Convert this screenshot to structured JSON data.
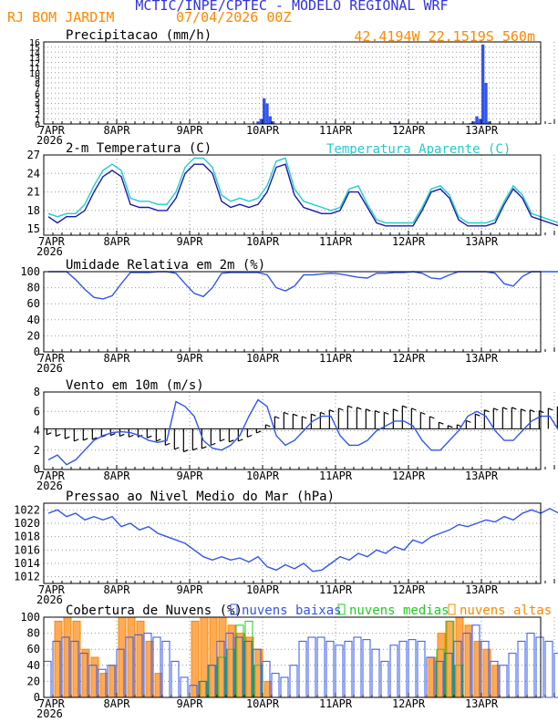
{
  "header": {
    "title": "MCTIC/INPE/CPTEC - MODELO REGIONAL WRF",
    "location": "RJ BOM JARDIM",
    "date": "07/04/2026 00Z",
    "coords": "42.4194W  22.1519S  560m"
  },
  "colors": {
    "title": "#3333dd",
    "orange": "#ff8800",
    "blue": "#3355ee",
    "cyan": "#22cccc",
    "green": "#22cc22",
    "grid": "#999999"
  },
  "x_ticks": [
    "7APR",
    "8APR",
    "9APR",
    "10APR",
    "11APR",
    "12APR",
    "13APR"
  ],
  "x_year": "2026",
  "chart_data": [
    {
      "type": "bar",
      "title": "Precipitacao (mm/h)",
      "ylim": [
        0,
        16
      ],
      "ticks": [
        0,
        1,
        2,
        3,
        4,
        5,
        6,
        7,
        8,
        9,
        10,
        11,
        12,
        13,
        14,
        15,
        16
      ],
      "hour_step": 1,
      "values": [
        0,
        0,
        0,
        0,
        0,
        0,
        0,
        0,
        0,
        0,
        0,
        0,
        0,
        0,
        0,
        0,
        0,
        0,
        0,
        0,
        0,
        0,
        0,
        0,
        0,
        0,
        0,
        0,
        0,
        0,
        0,
        0,
        0,
        0,
        0,
        0,
        0,
        0,
        0,
        0,
        0,
        0,
        0,
        0,
        0,
        0,
        0,
        0,
        0,
        0,
        0,
        0,
        0,
        0,
        0,
        0,
        0,
        0,
        0,
        0,
        0,
        0,
        0,
        0,
        0,
        0,
        0,
        0,
        0,
        0,
        0.5,
        1,
        5,
        4,
        1.5,
        0.5,
        0,
        0,
        0,
        0,
        0,
        0,
        0,
        0,
        0,
        0,
        0,
        0,
        0,
        0,
        0,
        0,
        0,
        0,
        0,
        0,
        0,
        0,
        0,
        0,
        0,
        0,
        0,
        0,
        0,
        0,
        0,
        0,
        0,
        0,
        0,
        0,
        0,
        0,
        0.2,
        0.2,
        0.2,
        0,
        0,
        0,
        0,
        0,
        0,
        0,
        0,
        0,
        0,
        0,
        0,
        0,
        0,
        0,
        0,
        0,
        0,
        0,
        0,
        0,
        0,
        0,
        0.2,
        0.5,
        1.5,
        1,
        15.5,
        8,
        0.5,
        0,
        0,
        0,
        0,
        0,
        0,
        0,
        0,
        0,
        0,
        0,
        0,
        0,
        0,
        0,
        0,
        0,
        0,
        0,
        0.2,
        0,
        0,
        0,
        0,
        0,
        0,
        0,
        0,
        0,
        0,
        0,
        0,
        0,
        0,
        0,
        0,
        0,
        0.3,
        0.5,
        0.3,
        0,
        0,
        0,
        0,
        0,
        0,
        0,
        0,
        0,
        0
      ]
    },
    {
      "type": "line",
      "title": "2-m Temperatura (C)",
      "ylim": [
        14,
        27
      ],
      "ticks": [
        15,
        18,
        21,
        24,
        27
      ],
      "hour_step": 3,
      "series": [
        {
          "name": "",
          "color": "#1a1aaa",
          "values": [
            17,
            16,
            17,
            17,
            18,
            21,
            23.5,
            24.5,
            23.5,
            19,
            18.5,
            18.5,
            18,
            18,
            20,
            24,
            25.5,
            25.5,
            24,
            19.5,
            18.5,
            19,
            18.5,
            19,
            21,
            25,
            25.5,
            20.5,
            18.5,
            18,
            17.5,
            17.5,
            18,
            21,
            21,
            18.5,
            16,
            15.5,
            15.5,
            15.5,
            15.5,
            18,
            21,
            21.5,
            20,
            16.5,
            15.5,
            15.5,
            15.5,
            16,
            19,
            21.5,
            20,
            17,
            16.5,
            16,
            15.5,
            16,
            16.5,
            19.5,
            20,
            17.5,
            16,
            15.5,
            15,
            16.5,
            20,
            19,
            18,
            16
          ]
        },
        {
          "name": "Temperatura Aparente (C)",
          "color": "#22cccc",
          "values": [
            17.5,
            17,
            17.5,
            17.5,
            19,
            22,
            24.5,
            25.5,
            24.5,
            20,
            19.5,
            19.5,
            19,
            19,
            21,
            25,
            26.5,
            26.5,
            25,
            20.5,
            19.5,
            20,
            19.5,
            20,
            22,
            26,
            26.5,
            21.5,
            19.5,
            19,
            18.5,
            18,
            18.5,
            21.5,
            22,
            19,
            16.5,
            16,
            16,
            16,
            16,
            18.5,
            21.5,
            22,
            20.5,
            17,
            16,
            16,
            16,
            16.5,
            19.5,
            22,
            20.5,
            17.5,
            17,
            16.5,
            16,
            16.5,
            17,
            20,
            20.5,
            18,
            16.5,
            16,
            15.5,
            17,
            20.5,
            19.5,
            18.5,
            16.5
          ]
        }
      ]
    },
    {
      "type": "line",
      "title": "Umidade Relativa em 2m (%)",
      "ylim": [
        0,
        100
      ],
      "ticks": [
        0,
        20,
        40,
        60,
        80,
        100
      ],
      "hour_step": 3,
      "series": [
        {
          "name": "",
          "color": "#3355ee",
          "values": [
            100,
            100,
            100,
            90,
            78,
            68,
            66,
            70,
            85,
            99,
            99,
            99,
            100,
            100,
            98,
            85,
            73,
            69,
            80,
            98,
            99,
            99,
            99,
            99,
            96,
            80,
            76,
            82,
            96,
            96,
            97,
            98,
            97,
            95,
            93,
            92,
            98,
            98,
            99,
            99,
            100,
            98,
            92,
            91,
            96,
            100,
            100,
            100,
            100,
            98,
            85,
            82,
            94,
            100,
            100,
            100,
            100,
            98,
            92,
            87,
            95,
            99,
            100,
            100,
            100,
            90,
            80,
            90,
            97,
            99
          ]
        }
      ]
    },
    {
      "type": "line",
      "title": "Vento em 10m (m/s)",
      "ylim": [
        0,
        8
      ],
      "ticks": [
        0,
        2,
        4,
        6,
        8
      ],
      "hour_step": 3,
      "series": [
        {
          "name": "",
          "color": "#3355ee",
          "values": [
            1,
            1.5,
            0.5,
            1,
            2,
            3,
            3.5,
            3.8,
            3.9,
            3.8,
            3.5,
            3,
            2.8,
            3,
            7,
            6.5,
            5.5,
            3,
            2.2,
            2,
            2.5,
            3.5,
            5.5,
            7.2,
            6.5,
            3.5,
            2.5,
            3,
            4,
            5,
            5.5,
            5.5,
            3.5,
            2.5,
            2.5,
            3,
            4,
            4.5,
            5,
            5,
            4.5,
            3,
            2,
            2,
            3,
            4,
            5.5,
            6,
            5.5,
            4,
            3,
            3,
            4,
            5,
            5.5,
            5.5,
            4,
            2.5,
            2,
            2.5,
            3.5,
            4.5,
            5,
            4.5,
            3.5,
            2.5,
            2.5,
            3.5,
            4.5,
            5
          ]
        }
      ],
      "wind_arrows": [
        -0.7,
        -0.9,
        -1.2,
        -1.5,
        -1.4,
        -1.3,
        -1,
        -0.8,
        -0.9,
        -1,
        -1,
        -1.1,
        -1.5,
        -2,
        -2.5,
        -2.8,
        -2.6,
        -2.4,
        -2,
        -1.5,
        -1.6,
        -1.5,
        -1,
        -0.5,
        0.5,
        1.5,
        2,
        1.8,
        1.5,
        1.8,
        2,
        2.3,
        2.5,
        2.8,
        2.6,
        2.4,
        2.2,
        2,
        2.4,
        2.8,
        2.5,
        2,
        1.5,
        0.8,
        0.4,
        0.5,
        1,
        1.8,
        2.3,
        2.5,
        2.6,
        2.6,
        2.4,
        2.3,
        2.2,
        2.5,
        2.7,
        2.6,
        2.3,
        2,
        1.8,
        2,
        2.2,
        2.5,
        2.6,
        2.8,
        2.6,
        2.3,
        2.4,
        2.5
      ]
    },
    {
      "type": "line",
      "title": "Pressao ao Nivel Medio do Mar (hPa)",
      "ylim": [
        1011,
        1023
      ],
      "ticks": [
        1012,
        1014,
        1016,
        1018,
        1020,
        1022
      ],
      "hour_step": 3,
      "series": [
        {
          "name": "",
          "color": "#3355ee",
          "values": [
            1021.5,
            1022,
            1021,
            1021.5,
            1020.5,
            1021,
            1020.5,
            1021,
            1019.5,
            1020,
            1019,
            1019.5,
            1018.5,
            1018,
            1017.5,
            1017,
            1016,
            1015,
            1014.5,
            1015,
            1014.5,
            1014.8,
            1014.2,
            1015,
            1013.5,
            1013,
            1013.8,
            1013.2,
            1014,
            1012.8,
            1013,
            1014,
            1015,
            1014.5,
            1015.5,
            1015,
            1016,
            1015.5,
            1016.5,
            1016,
            1017.5,
            1017,
            1018,
            1018.5,
            1019,
            1019.8,
            1019.5,
            1020,
            1020.5,
            1020.2,
            1021,
            1020.5,
            1021.5,
            1022,
            1021.5,
            1022.2,
            1021.5,
            1021.2,
            1021,
            1020.5,
            1021,
            1020,
            1020.5,
            1019.5,
            1019,
            1018.5,
            1018,
            1018.5,
            1018.2,
            1018.5
          ]
        }
      ]
    },
    {
      "type": "bar",
      "title": "Cobertura de Nuvens (%)",
      "ylim": [
        0,
        100
      ],
      "ticks": [
        0,
        20,
        40,
        60,
        80,
        100
      ],
      "hour_step": 3,
      "series": [
        {
          "name": "nuvens baixas",
          "color": "#3355ee",
          "values": [
            45,
            70,
            75,
            70,
            55,
            40,
            35,
            40,
            60,
            75,
            78,
            80,
            75,
            70,
            45,
            25,
            15,
            20,
            40,
            70,
            80,
            75,
            70,
            60,
            45,
            30,
            25,
            40,
            70,
            75,
            75,
            70,
            65,
            70,
            75,
            72,
            60,
            45,
            65,
            70,
            72,
            70,
            50,
            45,
            55,
            70,
            80,
            90,
            70,
            45,
            40,
            55,
            70,
            80,
            75,
            70,
            55,
            45,
            40,
            50,
            65,
            70,
            60,
            35,
            20,
            25,
            40,
            55,
            45,
            40
          ]
        },
        {
          "name": "nuvens medias",
          "color": "#22cc22",
          "values": [
            0,
            0,
            0,
            0,
            0,
            0,
            0,
            0,
            0,
            0,
            0,
            0,
            0,
            0,
            0,
            0,
            0,
            20,
            40,
            50,
            60,
            90,
            95,
            40,
            0,
            0,
            0,
            0,
            0,
            0,
            0,
            0,
            0,
            0,
            0,
            0,
            0,
            0,
            0,
            0,
            0,
            0,
            0,
            60,
            95,
            40,
            0,
            0,
            0,
            0,
            0,
            0,
            0,
            0,
            0,
            0,
            0,
            0,
            0,
            0,
            0,
            0,
            0,
            0,
            0,
            0,
            0,
            0,
            0,
            0
          ]
        },
        {
          "name": "nuvens altas",
          "color": "#ff8800",
          "values": [
            0,
            95,
            100,
            95,
            60,
            50,
            30,
            40,
            100,
            100,
            95,
            70,
            30,
            0,
            0,
            0,
            95,
            100,
            100,
            100,
            90,
            80,
            75,
            60,
            20,
            0,
            0,
            0,
            0,
            0,
            0,
            0,
            0,
            0,
            0,
            0,
            0,
            0,
            0,
            0,
            0,
            0,
            50,
            80,
            95,
            100,
            90,
            70,
            60,
            40,
            0,
            0,
            0,
            0,
            0,
            0,
            0,
            0,
            0,
            0,
            0,
            0,
            0,
            0,
            90,
            80,
            60,
            70,
            90,
            60
          ]
        }
      ]
    }
  ]
}
